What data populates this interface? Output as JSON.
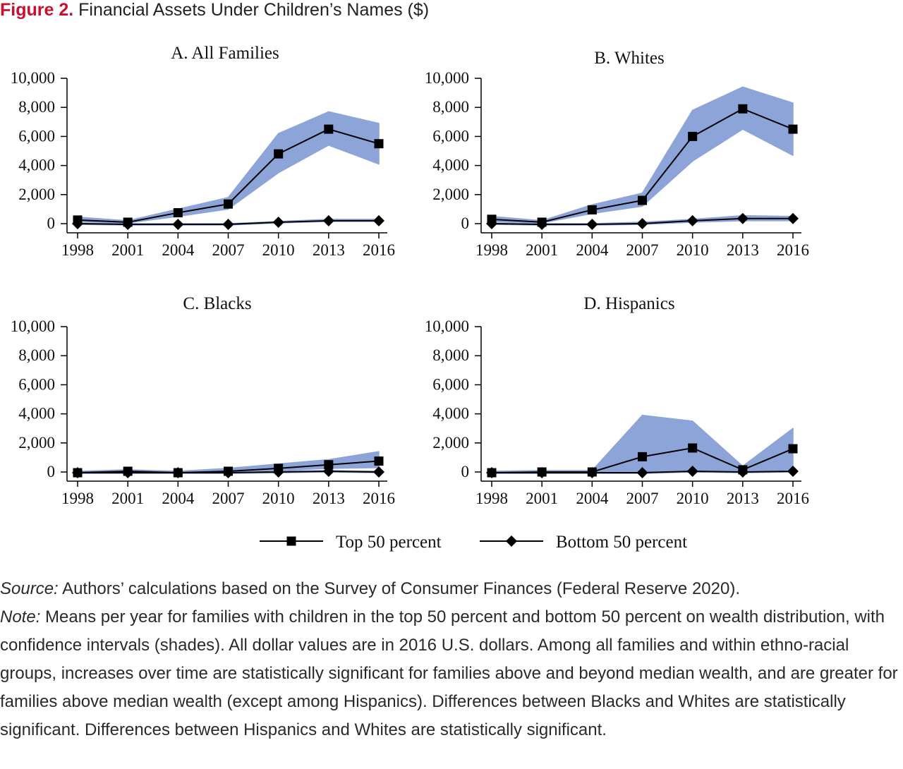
{
  "figure": {
    "label": "Figure 2.",
    "title": "Financial Assets Under Children’s Names ($)"
  },
  "colors": {
    "band": "#8da4d9",
    "line": "#000000",
    "label": "#c8102e"
  },
  "legend": [
    {
      "name": "Top 50 percent",
      "marker": "square"
    },
    {
      "name": "Bottom 50 percent",
      "marker": "diamond"
    }
  ],
  "notes": {
    "source_label": "Source:",
    "source_text": "Authors’ calculations based on the Survey of Consumer Finances (Federal Reserve 2020).",
    "note_label": "Note:",
    "note_text": "Means per year for families with children in the top 50 percent and bottom 50 percent on wealth distribution, with confidence intervals (shades). All dollar values are in 2016 U.S. dollars. Among all families and within ethno-racial groups, increases over time are statistically significant for families above and beyond median wealth, and are greater for families above median wealth (except among Hispanics). Differences between Blacks and Whites are statistically significant. Differences between Hispanics and Whites are statistically significant."
  },
  "chart_data": [
    {
      "type": "line",
      "title": "A. All Families",
      "x": [
        1998,
        2001,
        2004,
        2007,
        2010,
        2013,
        2016
      ],
      "yticks": [
        0,
        2000,
        4000,
        6000,
        8000,
        10000
      ],
      "ylim": [
        0,
        10000
      ],
      "series": [
        {
          "name": "Top 50 percent",
          "values": [
            250,
            100,
            750,
            1350,
            4800,
            6500,
            5500
          ],
          "ci_low": [
            150,
            50,
            500,
            1000,
            3500,
            5400,
            4100
          ],
          "ci_high": [
            450,
            200,
            1000,
            1800,
            6200,
            7700,
            6900
          ]
        },
        {
          "name": "Bottom 50 percent",
          "values": [
            0,
            -50,
            -50,
            -50,
            100,
            200,
            200
          ],
          "ci_low": [
            -50,
            -100,
            -100,
            -100,
            50,
            150,
            150
          ],
          "ci_high": [
            50,
            0,
            0,
            0,
            150,
            300,
            300
          ]
        }
      ]
    },
    {
      "type": "line",
      "title": "B. Whites",
      "x": [
        1998,
        2001,
        2004,
        2007,
        2010,
        2013,
        2016
      ],
      "yticks": [
        0,
        2000,
        4000,
        6000,
        8000,
        10000
      ],
      "ylim": [
        0,
        10000
      ],
      "series": [
        {
          "name": "Top 50 percent",
          "values": [
            300,
            100,
            950,
            1600,
            6000,
            7900,
            6500
          ],
          "ci_low": [
            150,
            50,
            700,
            1200,
            4300,
            6500,
            4700
          ],
          "ci_high": [
            500,
            200,
            1300,
            2100,
            7800,
            9400,
            8300
          ]
        },
        {
          "name": "Bottom 50 percent",
          "values": [
            0,
            -50,
            -50,
            0,
            200,
            350,
            350
          ],
          "ci_low": [
            -50,
            -100,
            -100,
            -50,
            100,
            200,
            200
          ],
          "ci_high": [
            50,
            0,
            0,
            100,
            300,
            550,
            500
          ]
        }
      ]
    },
    {
      "type": "line",
      "title": "C. Blacks",
      "x": [
        1998,
        2001,
        2004,
        2007,
        2010,
        2013,
        2016
      ],
      "yticks": [
        0,
        2000,
        4000,
        6000,
        8000,
        10000
      ],
      "ylim": [
        0,
        10000
      ],
      "series": [
        {
          "name": "Top 50 percent",
          "values": [
            -50,
            50,
            -50,
            50,
            250,
            500,
            750
          ],
          "ci_low": [
            -100,
            0,
            -100,
            0,
            100,
            250,
            300
          ],
          "ci_high": [
            50,
            150,
            50,
            250,
            550,
            850,
            1400
          ]
        },
        {
          "name": "Bottom 50 percent",
          "values": [
            -50,
            -50,
            -50,
            -50,
            0,
            50,
            0
          ],
          "ci_low": [
            -100,
            -100,
            -100,
            -100,
            -50,
            0,
            -50
          ],
          "ci_high": [
            0,
            0,
            0,
            0,
            50,
            100,
            50
          ]
        }
      ]
    },
    {
      "type": "line",
      "title": "D. Hispanics",
      "x": [
        1998,
        2001,
        2004,
        2007,
        2010,
        2013,
        2016
      ],
      "yticks": [
        0,
        2000,
        4000,
        6000,
        8000,
        10000
      ],
      "ylim": [
        0,
        10000
      ],
      "series": [
        {
          "name": "Top 50 percent",
          "values": [
            -50,
            0,
            0,
            1050,
            1650,
            150,
            1600
          ],
          "ci_low": [
            -100,
            -50,
            -50,
            0,
            0,
            0,
            200
          ],
          "ci_high": [
            50,
            100,
            100,
            3900,
            3500,
            400,
            3000
          ]
        },
        {
          "name": "Bottom 50 percent",
          "values": [
            -50,
            -50,
            -50,
            -50,
            50,
            0,
            50
          ],
          "ci_low": [
            -100,
            -100,
            -100,
            -100,
            0,
            -50,
            0
          ],
          "ci_high": [
            0,
            0,
            0,
            0,
            100,
            50,
            100
          ]
        }
      ]
    }
  ]
}
